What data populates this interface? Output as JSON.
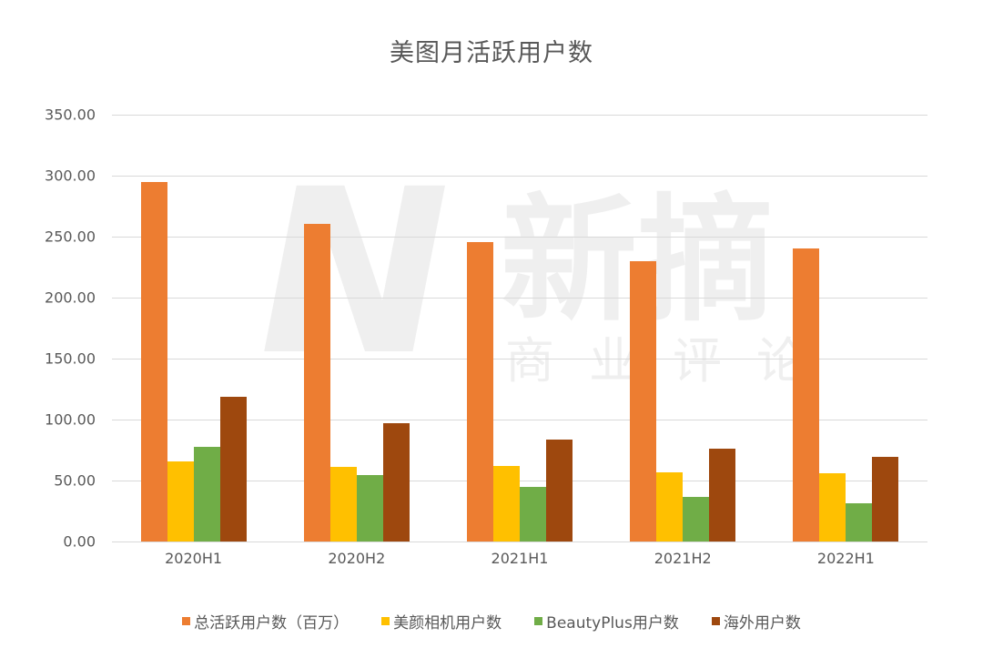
{
  "chart_data": {
    "type": "bar",
    "title": "美图月活跃用户数",
    "xlabel": "",
    "ylabel": "",
    "ylim": [
      0,
      350
    ],
    "yticks": [
      "0.00",
      "50.00",
      "100.00",
      "150.00",
      "200.00",
      "250.00",
      "300.00",
      "350.00"
    ],
    "grid": true,
    "legend_position": "bottom",
    "categories": [
      "2020H1",
      "2020H2",
      "2021H1",
      "2021H2",
      "2022H1"
    ],
    "series": [
      {
        "name": "总活跃用户数（百万）",
        "color": "#ED7D31",
        "values": [
          295.0,
          260.4,
          245.5,
          229.9,
          240.3
        ]
      },
      {
        "name": "美颜相机用户数",
        "color": "#FFC000",
        "values": [
          65.7,
          61.0,
          62.0,
          56.7,
          56.0
        ]
      },
      {
        "name": "BeautyPlus用户数",
        "color": "#70AD47",
        "values": [
          77.6,
          54.5,
          45.0,
          36.6,
          31.3
        ]
      },
      {
        "name": "海外用户数",
        "color": "#9E480E",
        "values": [
          118.7,
          97.0,
          83.6,
          76.0,
          69.4
        ]
      }
    ]
  },
  "watermark": {
    "logo": "N",
    "main": "新摘",
    "sub": [
      "商",
      "业",
      "评",
      "论"
    ]
  }
}
